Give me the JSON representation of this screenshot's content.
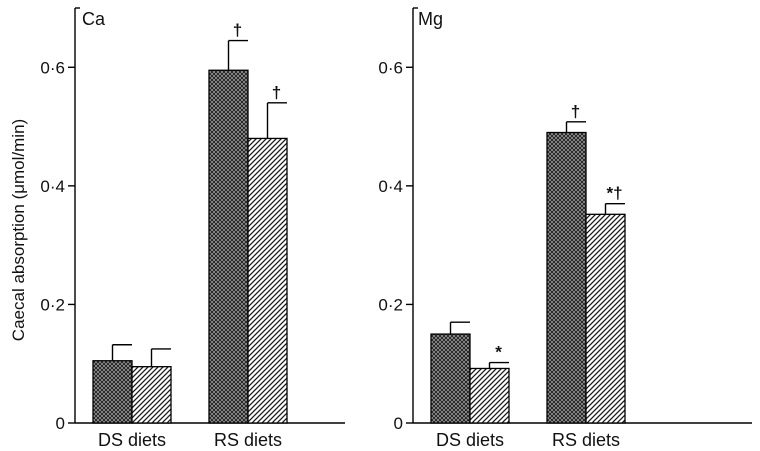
{
  "figure": {
    "ylabel": "Caecal absorption (μmol/min)"
  },
  "chart_data": [
    {
      "type": "bar",
      "panel_label": "Ca",
      "categories": [
        "DS diets",
        "RS diets"
      ],
      "series": [
        {
          "values": [
            0.105,
            0.595
          ],
          "errors": [
            0.027,
            0.05
          ],
          "pattern": "crosshatch",
          "annotations": [
            "",
            "†"
          ]
        },
        {
          "values": [
            0.095,
            0.48
          ],
          "errors": [
            0.03,
            0.06
          ],
          "pattern": "diagonal",
          "annotations": [
            "",
            "†"
          ]
        }
      ],
      "ylabel": "Caecal absorption (μmol/min)",
      "ylim": [
        0,
        0.7
      ],
      "yticks": [
        0,
        0.2,
        0.4,
        0.6
      ],
      "ytick_labels": [
        "0",
        "0·2",
        "0·4",
        "0·6"
      ],
      "grid": false
    },
    {
      "type": "bar",
      "panel_label": "Mg",
      "categories": [
        "DS diets",
        "RS diets"
      ],
      "series": [
        {
          "values": [
            0.15,
            0.49
          ],
          "errors": [
            0.02,
            0.018
          ],
          "pattern": "crosshatch",
          "annotations": [
            "",
            "†"
          ]
        },
        {
          "values": [
            0.092,
            0.352
          ],
          "errors": [
            0.01,
            0.018
          ],
          "pattern": "diagonal",
          "annotations": [
            "*",
            "*†"
          ]
        }
      ],
      "ylim": [
        0,
        0.7
      ],
      "yticks": [
        0,
        0.2,
        0.4,
        0.6
      ],
      "ytick_labels": [
        "0",
        "0·2",
        "0·4",
        "0·6"
      ],
      "grid": false
    }
  ]
}
